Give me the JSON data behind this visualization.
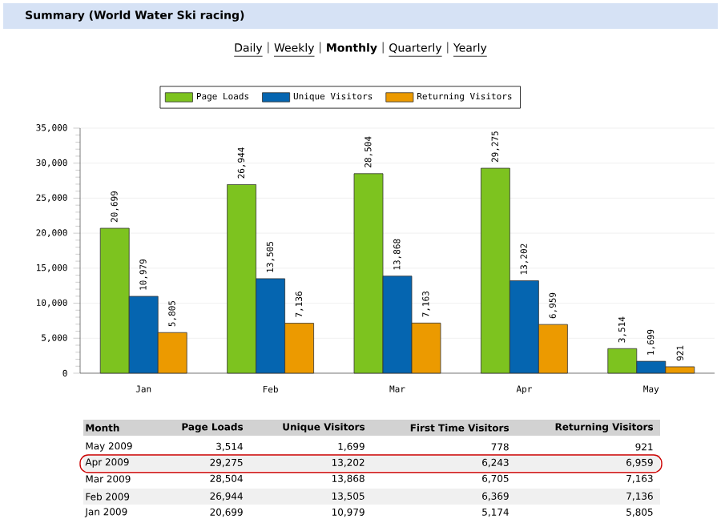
{
  "chart_data": {
    "type": "bar",
    "title": "Summary (World Water Ski racing)",
    "categories": [
      "Jan",
      "Feb",
      "Mar",
      "Apr",
      "May"
    ],
    "series": [
      {
        "name": "Page Loads",
        "color": "#7dc31f",
        "values": [
          20699,
          26944,
          28504,
          29275,
          3514
        ],
        "value_labels": [
          "20,699",
          "26,944",
          "28,504",
          "29,275",
          "3,514"
        ]
      },
      {
        "name": "Unique Visitors",
        "color": "#0565b0",
        "values": [
          10979,
          13505,
          13868,
          13202,
          1699
        ],
        "value_labels": [
          "10,979",
          "13,505",
          "13,868",
          "13,202",
          "1,699"
        ]
      },
      {
        "name": "Returning Visitors",
        "color": "#ec9a00",
        "values": [
          5805,
          7136,
          7163,
          6959,
          921
        ],
        "value_labels": [
          "5,805",
          "7,136",
          "7,163",
          "6,959",
          "921"
        ]
      }
    ],
    "ylim": [
      0,
      35000
    ],
    "yticks": [
      {
        "value": 0,
        "label": "0"
      },
      {
        "value": 5000,
        "label": "5,000"
      },
      {
        "value": 10000,
        "label": "10,000"
      },
      {
        "value": 15000,
        "label": "15,000"
      },
      {
        "value": 20000,
        "label": "20,000"
      },
      {
        "value": 25000,
        "label": "25,000"
      },
      {
        "value": 30000,
        "label": "30,000"
      },
      {
        "value": 35000,
        "label": "35,000"
      }
    ],
    "grid": "y",
    "legend": "top",
    "annotations": [
      "Daily",
      "Weekly",
      "Monthly",
      "Quarterly",
      "Yearly",
      "Month",
      "Page Loads",
      "Unique Visitors",
      "First Time Visitors",
      "Returning Visitors",
      "May 2009",
      "3,514",
      "1,699",
      "778",
      "921",
      "Apr 2009",
      "29,275",
      "13,202",
      "6,243",
      "6,959",
      "Mar 2009",
      "28,504",
      "13,868",
      "6,705",
      "7,163",
      "Feb 2009",
      "26,944",
      "13,505",
      "6,369",
      "7,136",
      "Jan 2009",
      "20,699",
      "10,979",
      "5,174",
      "5,805"
    ]
  }
}
